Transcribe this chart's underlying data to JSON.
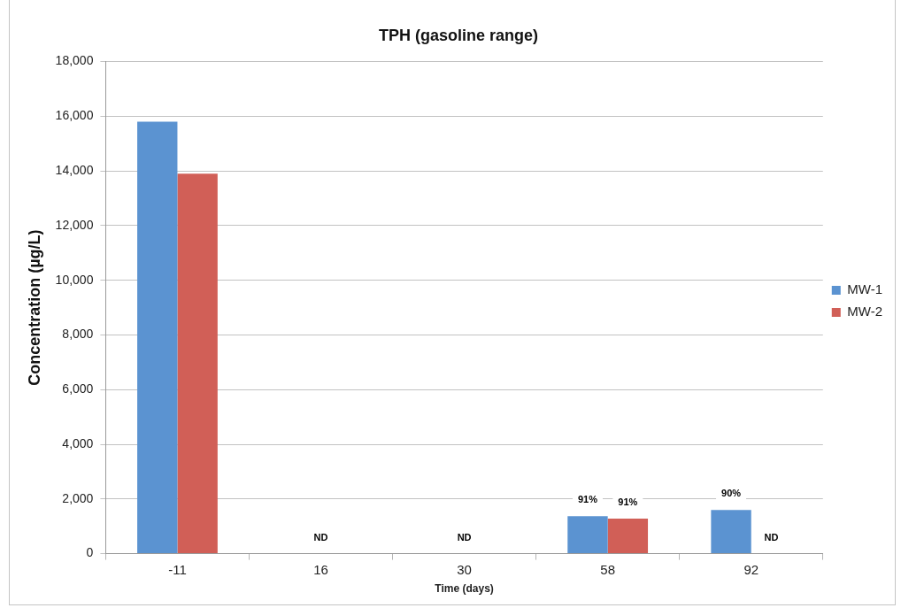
{
  "chart_data": {
    "type": "bar",
    "title": "TPH (gasoline range)",
    "xlabel": "Time (days)",
    "ylabel": "Concentration (µg/L)",
    "categories": [
      "-11",
      "16",
      "30",
      "58",
      "92"
    ],
    "series": [
      {
        "name": "MW-1",
        "color": "#5b93d1",
        "values": [
          15800,
          null,
          null,
          1370,
          1600
        ],
        "value_labels": [
          null,
          "ND",
          "ND",
          null,
          null
        ]
      },
      {
        "name": "MW-2",
        "color": "#d15f57",
        "values": [
          13900,
          null,
          null,
          1280,
          null
        ],
        "value_labels": [
          null,
          null,
          null,
          null,
          "ND"
        ]
      }
    ],
    "annotations": [
      {
        "text": "91%",
        "x": "58",
        "y": 1370
      },
      {
        "text": "91%",
        "x": "58",
        "y": 1280
      },
      {
        "text": "90%",
        "x": "92",
        "y": 1600
      }
    ],
    "ylim": [
      0,
      18000
    ],
    "yticks": [
      0,
      {
        "value": 2000,
        "label": "2,000"
      },
      {
        "value": 4000,
        "label": "4,000"
      },
      {
        "value": 6000,
        "label": "6,000"
      },
      {
        "value": 8000,
        "label": "8,000"
      },
      {
        "value": 10000,
        "label": "10,000"
      },
      {
        "value": 12000,
        "label": "12,000"
      },
      {
        "value": 14000,
        "label": "14,000"
      },
      {
        "value": 16000,
        "label": "16,000"
      },
      {
        "value": 18000,
        "label": "18,000"
      }
    ],
    "grid": "y",
    "legend": "right"
  }
}
